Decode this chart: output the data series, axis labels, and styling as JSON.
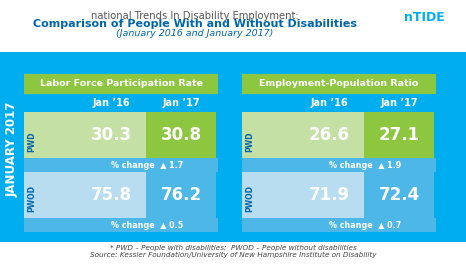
{
  "title_line1": "national Trends In Disability Employment:",
  "title_line2": "Comparison of People With and Without Disabilities",
  "title_line3": "(January 2016 and January 2017)",
  "section1_header": "Labor Force Participation Rate",
  "section2_header": "Employment-Population Ratio",
  "col1_label": "Jan ’16",
  "col2_label": "Jan ’17",
  "pwd_label": "PWD",
  "pwod_label": "PWOD",
  "lfpr_pwd_jan16": "30.3",
  "lfpr_pwd_jan17": "30.8",
  "lfpr_pwd_change": "1.7",
  "lfpr_pwod_jan16": "75.8",
  "lfpr_pwod_jan17": "76.2",
  "lfpr_pwod_change": "0.5",
  "epr_pwd_jan16": "26.6",
  "epr_pwd_jan17": "27.1",
  "epr_pwd_change": "1.9",
  "epr_pwod_jan16": "71.9",
  "epr_pwod_jan17": "72.4",
  "epr_pwod_change": "0.7",
  "footnote1": "* PWD – People with disabilities;  PWOD – People without disabilities",
  "footnote2": "Source: Kessler Foundation/University of New Hampshire Institute on Disability",
  "sidebar_label": "JANUARY 2017",
  "ntide_label": "nTIDE",
  "bg_color": "#00aeef",
  "header_green": "#8dc63f",
  "cell_green_light": "#c5e0a5",
  "cell_blue_light": "#b8ddf0",
  "cell_change_blue": "#4db8e8",
  "text_white": "#ffffff",
  "text_blue_dark": "#1a5276",
  "text_blue_medium": "#0072bc",
  "title_color1": "#555555",
  "title_color2": "#0066aa",
  "footnote_color": "#555555"
}
